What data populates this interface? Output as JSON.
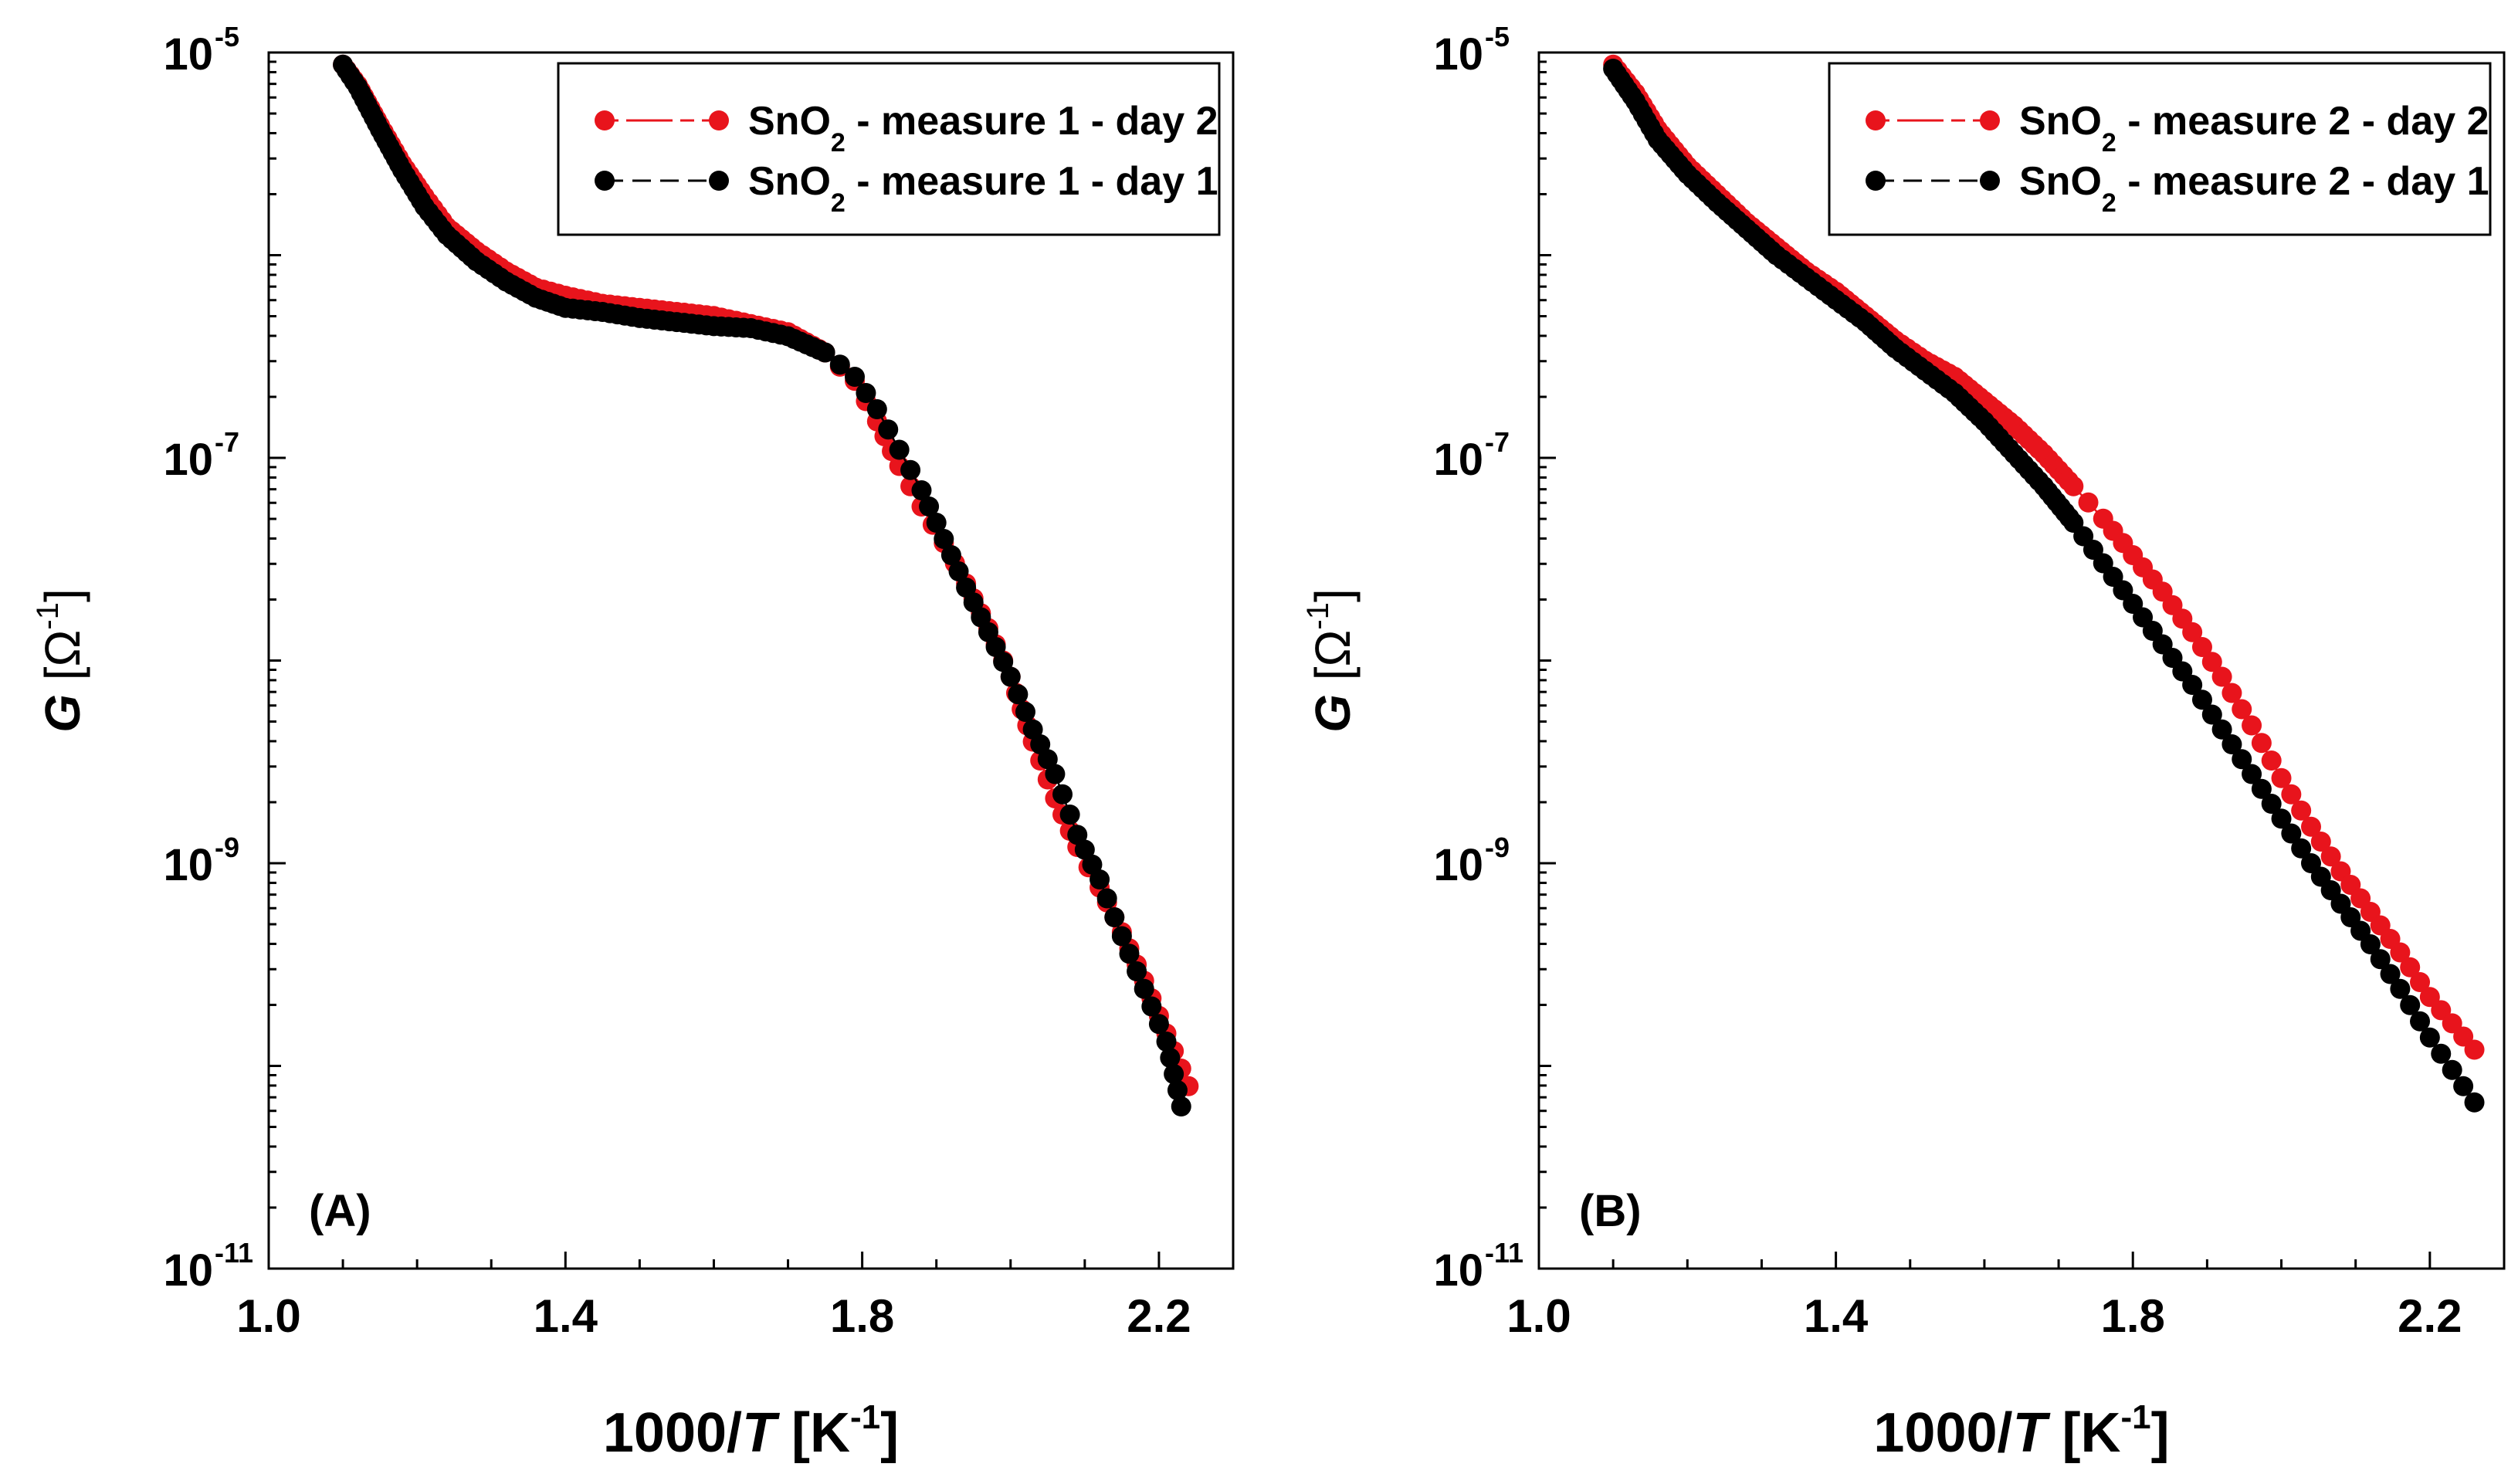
{
  "chart_data": [
    {
      "type": "scatter",
      "panel_label": "(A)",
      "xlabel_prefix": "1000/",
      "xlabel_var": "T",
      "xlabel_unit": " [K",
      "xlabel_sup": "-1",
      "xlabel_close": "]",
      "ylabel_var": "G",
      "ylabel_unit": " [Ω",
      "ylabel_sup": "-1",
      "ylabel_close": "]",
      "xlim": [
        1.0,
        2.3
      ],
      "ylim_log10": [
        -11,
        -5
      ],
      "x_ticks": [
        "1.0",
        "1.4",
        "1.8",
        "2.2"
      ],
      "y_ticks": [
        {
          "base": "10",
          "exp": "-5"
        },
        {
          "base": "10",
          "exp": "-7"
        },
        {
          "base": "10",
          "exp": "-9"
        },
        {
          "base": "10",
          "exp": "-11"
        }
      ],
      "legend_position": "top-right",
      "series": [
        {
          "name_main": "SnO",
          "name_sub": "2",
          "name_rest": " - measure 1 - day 2",
          "color": "#e8141c",
          "x": [
            1.1,
            1.12,
            1.15,
            1.18,
            1.21,
            1.24,
            1.28,
            1.32,
            1.36,
            1.4,
            1.45,
            1.5,
            1.55,
            1.6,
            1.65,
            1.7,
            1.75,
            1.79,
            1.82,
            1.85,
            1.88,
            1.91,
            1.94,
            1.97,
            2.0,
            2.03,
            2.06,
            2.09,
            2.12,
            2.15,
            2.18,
            2.21,
            2.24
          ],
          "y_log10": [
            -5.06,
            -5.16,
            -5.36,
            -5.55,
            -5.71,
            -5.86,
            -5.98,
            -6.08,
            -6.16,
            -6.2,
            -6.24,
            -6.26,
            -6.28,
            -6.3,
            -6.34,
            -6.38,
            -6.48,
            -6.62,
            -6.82,
            -7.04,
            -7.24,
            -7.42,
            -7.62,
            -7.84,
            -8.08,
            -8.4,
            -8.68,
            -8.92,
            -9.12,
            -9.34,
            -9.58,
            -9.84,
            -10.1
          ]
        },
        {
          "name_main": "SnO",
          "name_sub": "2",
          "name_rest": " - measure 1 - day 1",
          "color": "#000000",
          "x": [
            1.1,
            1.12,
            1.15,
            1.18,
            1.21,
            1.24,
            1.28,
            1.32,
            1.36,
            1.4,
            1.45,
            1.5,
            1.55,
            1.6,
            1.65,
            1.7,
            1.75,
            1.79,
            1.82,
            1.85,
            1.88,
            1.91,
            1.94,
            1.97,
            2.0,
            2.03,
            2.06,
            2.09,
            2.12,
            2.15,
            2.18,
            2.21,
            2.23
          ],
          "y_log10": [
            -5.06,
            -5.17,
            -5.38,
            -5.58,
            -5.76,
            -5.9,
            -6.03,
            -6.13,
            -6.21,
            -6.26,
            -6.28,
            -6.31,
            -6.33,
            -6.35,
            -6.36,
            -6.4,
            -6.48,
            -6.6,
            -6.76,
            -6.96,
            -7.16,
            -7.4,
            -7.64,
            -7.86,
            -8.08,
            -8.34,
            -8.56,
            -8.86,
            -9.08,
            -9.36,
            -9.62,
            -9.88,
            -10.2
          ]
        }
      ]
    },
    {
      "type": "scatter",
      "panel_label": "(B)",
      "xlabel_prefix": "1000/",
      "xlabel_var": "T",
      "xlabel_unit": " [K",
      "xlabel_sup": "-1",
      "xlabel_close": "]",
      "ylabel_var": "G",
      "ylabel_unit": " [Ω",
      "ylabel_sup": "-1",
      "ylabel_close": "]",
      "xlim": [
        1.0,
        2.3
      ],
      "ylim_log10": [
        -11,
        -5
      ],
      "x_ticks": [
        "1.0",
        "1.4",
        "1.8",
        "2.2"
      ],
      "y_ticks": [
        {
          "base": "10",
          "exp": "-5"
        },
        {
          "base": "10",
          "exp": "-7"
        },
        {
          "base": "10",
          "exp": "-9"
        },
        {
          "base": "10",
          "exp": "-11"
        }
      ],
      "legend_position": "top-right",
      "series": [
        {
          "name_main": "SnO",
          "name_sub": "2",
          "name_rest": " - measure 2 - day 2",
          "color": "#e8141c",
          "x": [
            1.1,
            1.13,
            1.16,
            1.2,
            1.24,
            1.28,
            1.32,
            1.36,
            1.4,
            1.44,
            1.48,
            1.52,
            1.56,
            1.6,
            1.64,
            1.68,
            1.72,
            1.76,
            1.8,
            1.84,
            1.88,
            1.92,
            1.96,
            2.0,
            2.04,
            2.08,
            2.12,
            2.16,
            2.2,
            2.26
          ],
          "y_log10": [
            -5.06,
            -5.2,
            -5.38,
            -5.56,
            -5.7,
            -5.84,
            -5.96,
            -6.08,
            -6.18,
            -6.3,
            -6.42,
            -6.52,
            -6.6,
            -6.72,
            -6.84,
            -6.98,
            -7.14,
            -7.3,
            -7.48,
            -7.66,
            -7.86,
            -8.08,
            -8.32,
            -8.58,
            -8.82,
            -9.04,
            -9.24,
            -9.44,
            -9.66,
            -9.92
          ]
        },
        {
          "name_main": "SnO",
          "name_sub": "2",
          "name_rest": " - measure 2 - day 1",
          "color": "#000000",
          "x": [
            1.1,
            1.13,
            1.16,
            1.2,
            1.24,
            1.28,
            1.32,
            1.36,
            1.4,
            1.44,
            1.48,
            1.52,
            1.56,
            1.6,
            1.64,
            1.68,
            1.72,
            1.76,
            1.8,
            1.84,
            1.88,
            1.92,
            1.96,
            2.0,
            2.04,
            2.08,
            2.12,
            2.16,
            2.2,
            2.26
          ],
          "y_log10": [
            -5.08,
            -5.24,
            -5.43,
            -5.6,
            -5.74,
            -5.87,
            -6.0,
            -6.11,
            -6.22,
            -6.33,
            -6.46,
            -6.57,
            -6.68,
            -6.82,
            -6.98,
            -7.14,
            -7.32,
            -7.52,
            -7.72,
            -7.92,
            -8.12,
            -8.34,
            -8.56,
            -8.78,
            -9.0,
            -9.2,
            -9.4,
            -9.62,
            -9.86,
            -10.18
          ]
        }
      ]
    }
  ]
}
